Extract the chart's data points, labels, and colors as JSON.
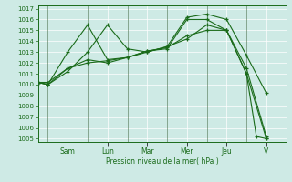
{
  "bg_color": "#ceeae5",
  "grid_color": "#ffffff",
  "line_color": "#1a6b1a",
  "marker_color": "#1a6b1a",
  "xlabel": "Pression niveau de la mer( hPa )",
  "ylim": [
    1005,
    1017
  ],
  "yticks": [
    1005,
    1006,
    1007,
    1008,
    1009,
    1010,
    1011,
    1012,
    1013,
    1014,
    1015,
    1016,
    1017
  ],
  "day_labels": [
    "Sam",
    "Lun",
    "Mar",
    "Mer",
    "Jeu",
    "V"
  ],
  "day_tick_positions": [
    3,
    7,
    11,
    15,
    19,
    23
  ],
  "day_vline_positions": [
    1,
    5,
    9,
    13,
    17,
    21
  ],
  "xlim": [
    0,
    25
  ],
  "series": [
    {
      "x": [
        0,
        1,
        3,
        5,
        7,
        9,
        11,
        13,
        15,
        17,
        19,
        21,
        23
      ],
      "y": [
        1010.2,
        1010.0,
        1011.2,
        1013.0,
        1015.5,
        1013.3,
        1013.0,
        1013.5,
        1016.2,
        1016.5,
        1016.0,
        1012.7,
        1009.2
      ]
    },
    {
      "x": [
        0,
        1,
        3,
        5,
        7,
        9,
        11,
        13,
        15,
        17,
        19,
        21,
        22,
        23
      ],
      "y": [
        1010.2,
        1010.0,
        1013.0,
        1015.5,
        1012.3,
        1012.5,
        1013.1,
        1013.3,
        1016.0,
        1016.0,
        1015.0,
        1011.0,
        1005.2,
        1005.0
      ]
    },
    {
      "x": [
        0,
        1,
        3,
        5,
        7,
        9,
        11,
        13,
        15,
        17,
        19,
        21,
        23
      ],
      "y": [
        1010.2,
        1010.0,
        1011.5,
        1012.3,
        1012.0,
        1012.5,
        1013.0,
        1013.5,
        1014.2,
        1015.5,
        1015.0,
        1011.0,
        1005.0
      ]
    },
    {
      "x": [
        0,
        1,
        3,
        5,
        7,
        9,
        11,
        13,
        15,
        17,
        19,
        21,
        23
      ],
      "y": [
        1010.2,
        1010.2,
        1011.5,
        1012.0,
        1012.2,
        1012.5,
        1013.1,
        1013.4,
        1014.5,
        1015.0,
        1015.0,
        1011.5,
        1005.2
      ]
    }
  ]
}
